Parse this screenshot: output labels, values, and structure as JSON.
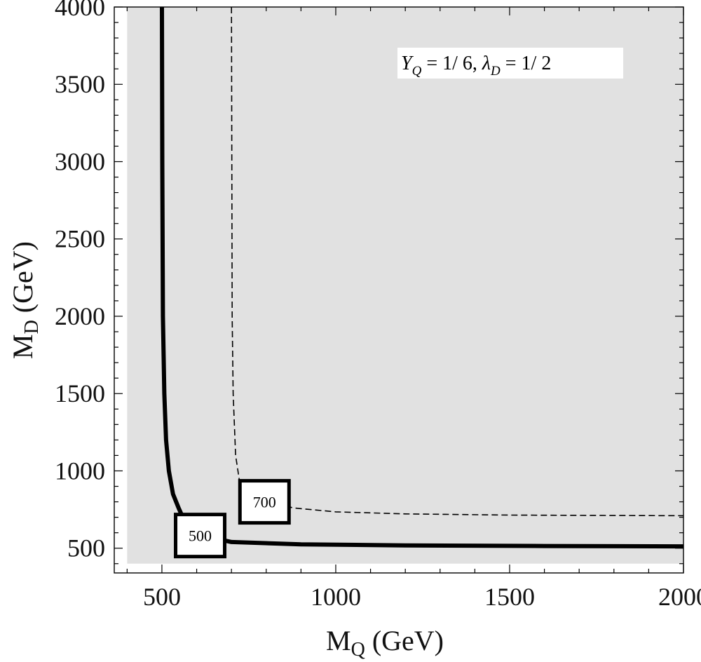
{
  "chart_data": {
    "type": "contour",
    "xlabel": {
      "main": "M",
      "sub": "Q",
      "unit": " (GeV)"
    },
    "ylabel": {
      "main": "M",
      "sub": "D",
      "unit": " (GeV)"
    },
    "xlim": [
      363,
      2000
    ],
    "ylim": [
      340,
      4000
    ],
    "xticks": [
      "500",
      "1000",
      "1500",
      "2000"
    ],
    "yticks": [
      "500",
      "1000",
      "1500",
      "2000",
      "2500",
      "3000",
      "3500",
      "4000"
    ],
    "shaded_region": {
      "x": [
        400,
        2000
      ],
      "y": [
        400,
        4000
      ],
      "color": "#e1e1e1"
    },
    "annotation": {
      "y_sym": "Y",
      "y_sub": "Q",
      "y_val": " = 1/ 6, ",
      "l_sym": "λ",
      "l_sub": "D",
      "l_val": " = 1/ 2"
    },
    "contours": [
      {
        "label": "500",
        "style": "solid",
        "points": [
          [
            500,
            4000
          ],
          [
            501,
            3000
          ],
          [
            503,
            2000
          ],
          [
            507,
            1500
          ],
          [
            512,
            1200
          ],
          [
            520,
            1000
          ],
          [
            532,
            850
          ],
          [
            548,
            760
          ],
          [
            560,
            700
          ],
          [
            600,
            590
          ],
          [
            700,
            540
          ],
          [
            900,
            525
          ],
          [
            1200,
            518
          ],
          [
            1600,
            514
          ],
          [
            2000,
            512
          ]
        ],
        "label_at": [
          610,
          582
        ]
      },
      {
        "label": "700",
        "style": "dashed",
        "points": [
          [
            700,
            4000
          ],
          [
            701,
            3000
          ],
          [
            702,
            2000
          ],
          [
            705,
            1500
          ],
          [
            712,
            1100
          ],
          [
            722,
            950
          ],
          [
            735,
            880
          ],
          [
            760,
            830
          ],
          [
            820,
            790
          ],
          [
            880,
            760
          ],
          [
            1000,
            735
          ],
          [
            1200,
            722
          ],
          [
            1500,
            714
          ],
          [
            2000,
            710
          ]
        ],
        "label_at": [
          795,
          800
        ]
      }
    ]
  }
}
